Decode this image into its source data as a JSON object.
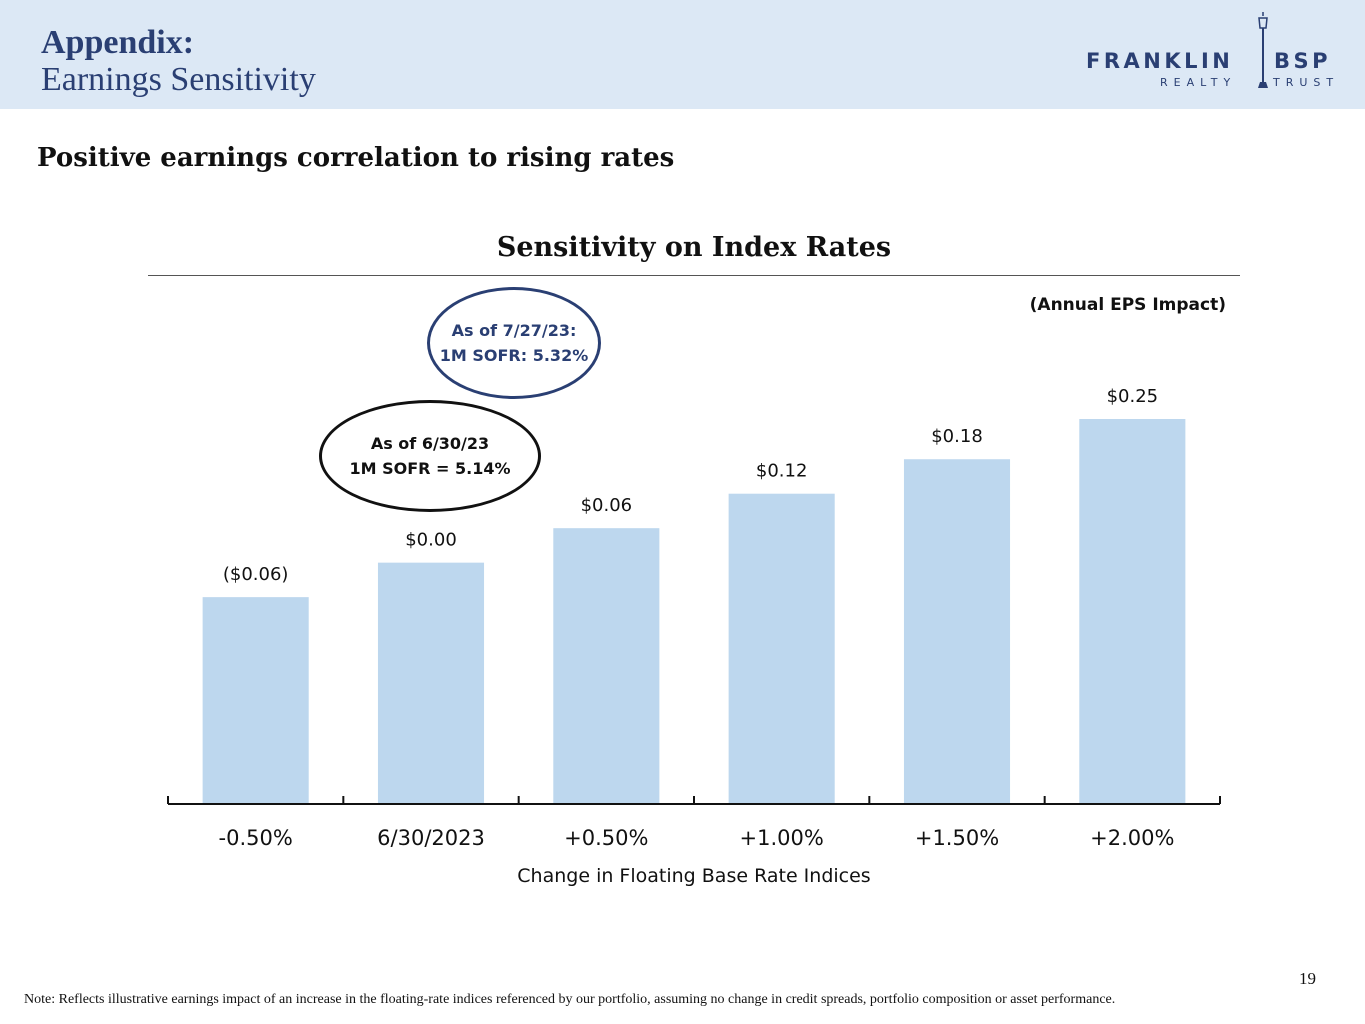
{
  "header": {
    "title": "Appendix:",
    "subtitle": "Earnings Sensitivity",
    "logo": {
      "word_left": "FRANKLIN",
      "word_right": "BSP",
      "tag_left": "REALTY",
      "tag_right": "TRUST",
      "icon": "lamppost-icon"
    }
  },
  "headline": "Positive earnings correlation to rising rates",
  "callouts": {
    "current": {
      "line1": "As of 7/27/23:",
      "line2": "1M SOFR: 5.32%"
    },
    "quarter_end": {
      "line1": "As of 6/30/23",
      "line2": "1M SOFR = 5.14%"
    }
  },
  "chart_data": {
    "type": "bar",
    "title": "Sensitivity on Index Rates",
    "subtitle": "(Annual EPS Impact)",
    "categories": [
      "-0.50%",
      "6/30/2023",
      "+0.50%",
      "+1.00%",
      "+1.50%",
      "+2.00%"
    ],
    "values": [
      -0.06,
      0.0,
      0.06,
      0.12,
      0.18,
      0.25
    ],
    "data_labels": [
      "($0.06)",
      "$0.00",
      "$0.06",
      "$0.12",
      "$0.18",
      "$0.25"
    ],
    "xlabel": "Change  in Floating Base Rate Indices",
    "ylabel": "",
    "ylim": [
      -0.42,
      0.25
    ],
    "grid": false,
    "bar_color": "#bdd7ee"
  },
  "footer": {
    "page_number": "19",
    "note": "Note: Reflects illustrative earnings impact of an increase in the floating-rate indices referenced by our portfolio, assuming no change in credit spreads, portfolio composition or asset performance."
  },
  "colors": {
    "header_band": "#dce8f5",
    "brand_navy": "#2a3f73",
    "bar": "#bdd7ee"
  }
}
